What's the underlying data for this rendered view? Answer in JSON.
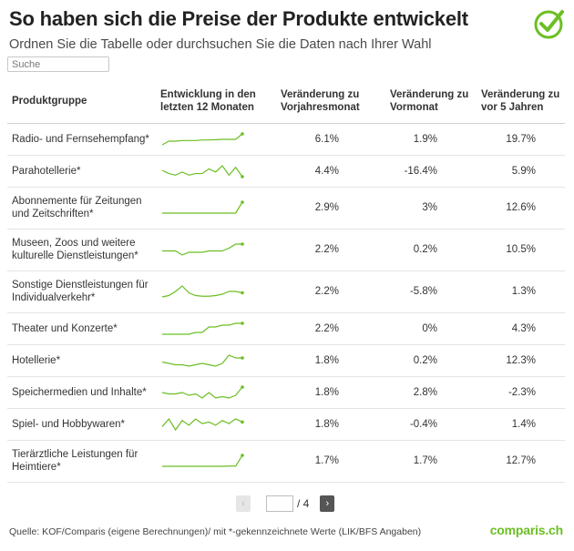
{
  "header": {
    "title": "So haben sich die Preise der Produkte entwickelt",
    "subtitle": "Ordnen Sie die Tabelle oder durchsuchen Sie die Daten nach Ihrer Wahl"
  },
  "search": {
    "placeholder": "Suche"
  },
  "table": {
    "columns": [
      "Produktgruppe",
      "Entwicklung in den letzten 12 Monaten",
      "Veränderung zu Vorjahresmonat",
      "Veränderung zu Vormonat",
      "Veränderung zu vor 5 Jahren"
    ],
    "rows": [
      {
        "name": "Radio- und Fernsehempfang*",
        "yoy": "6.1%",
        "mom": "1.9%",
        "y5": "19.7%",
        "trend": [
          0,
          3,
          3,
          3.5,
          3.5,
          3.5,
          4,
          4,
          4.2,
          4.5,
          4.5,
          4.5,
          9
        ]
      },
      {
        "name": "Parahotellerie*",
        "yoy": "4.4%",
        "mom": "-16.4%",
        "y5": "5.9%",
        "trend": [
          6,
          4,
          3,
          5,
          3,
          4,
          4,
          7,
          5,
          9,
          3,
          8,
          2
        ]
      },
      {
        "name": "Abonnemente für Zeitungen und Zeitschriften*",
        "yoy": "2.9%",
        "mom": "3%",
        "y5": "12.6%",
        "trend": [
          0,
          0,
          0,
          0,
          0,
          0,
          0,
          0,
          0,
          0,
          0,
          0,
          9
        ]
      },
      {
        "name": "Museen, Zoos und weitere kulturelle Dienstleistungen*",
        "yoy": "2.2%",
        "mom": "0.2%",
        "y5": "10.5%",
        "trend": [
          4,
          4,
          4,
          1,
          3,
          3,
          3,
          4,
          4,
          4,
          6,
          9,
          9
        ]
      },
      {
        "name": "Sonstige Dienstleistungen für Individualverkehr*",
        "yoy": "2.2%",
        "mom": "-5.8%",
        "y5": "1.3%",
        "trend": [
          1,
          2,
          5,
          9,
          4,
          2,
          1.5,
          1.5,
          2,
          3,
          5,
          5,
          4
        ]
      },
      {
        "name": "Theater und Konzerte*",
        "yoy": "2.2%",
        "mom": "0%",
        "y5": "4.3%",
        "trend": [
          0,
          0,
          0,
          0,
          0,
          1,
          1,
          4,
          4,
          5,
          5,
          6,
          6
        ]
      },
      {
        "name": "Hotellerie*",
        "yoy": "1.8%",
        "mom": "0.2%",
        "y5": "12.3%",
        "trend": [
          4,
          3,
          2,
          2,
          1,
          2,
          3,
          2,
          1,
          3,
          9,
          7,
          7
        ]
      },
      {
        "name": "Speichermedien und Inhalte*",
        "yoy": "1.8%",
        "mom": "2.8%",
        "y5": "-2.3%",
        "trend": [
          5,
          4,
          4,
          5,
          3,
          4,
          1,
          5,
          1,
          2,
          1,
          3,
          9
        ]
      },
      {
        "name": "Spiel- und Hobbywaren*",
        "yoy": "1.8%",
        "mom": "-0.4%",
        "y5": "1.4%",
        "trend": [
          3,
          8,
          1,
          7,
          4,
          8,
          5,
          6,
          4,
          7,
          5,
          8,
          6
        ]
      },
      {
        "name": "Tierärztliche Leistungen für Heimtiere*",
        "yoy": "1.7%",
        "mom": "1.7%",
        "y5": "12.7%",
        "trend": [
          0,
          0,
          0,
          0,
          0,
          0,
          0,
          0,
          0,
          0,
          0.2,
          0.2,
          9
        ]
      }
    ]
  },
  "pagination": {
    "prev": "‹",
    "next": "›",
    "current": "",
    "total": "/ 4"
  },
  "footer": {
    "source": "Quelle: KOF/Comparis (eigene Berechnungen)/ mit *-gekennzeichnete Werte (LIK/BFS Angaben)"
  },
  "brand": {
    "name": "comparis.ch"
  },
  "colors": {
    "accent": "#6bbf23",
    "spark": "#6bbf23"
  }
}
